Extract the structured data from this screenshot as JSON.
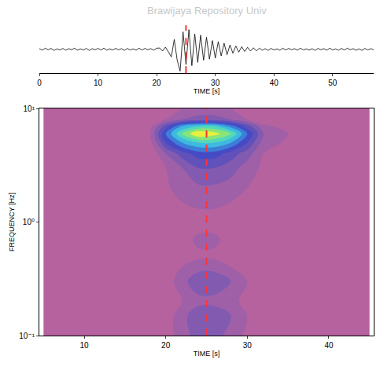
{
  "watermark": "Brawijaya Repository Univ",
  "chart_data": [
    {
      "type": "line",
      "x_label": "TIME [s]",
      "xlim": [
        0,
        57
      ],
      "xticks": [
        0,
        10,
        20,
        30,
        40,
        50
      ],
      "ylim": [
        -1.1,
        1.1
      ],
      "tick_labels": "x",
      "color": "#000000",
      "vline": {
        "x": 25,
        "color": "#ff3333",
        "line_style": "dashed"
      },
      "x": [
        0,
        0.5,
        1,
        1.5,
        2,
        2.5,
        3,
        3.5,
        4,
        4.5,
        5,
        5.5,
        6,
        6.5,
        7,
        7.5,
        8,
        8.5,
        9,
        9.5,
        10,
        10.5,
        11,
        11.5,
        12,
        12.5,
        13,
        13.5,
        14,
        14.5,
        15,
        15.5,
        16,
        16.5,
        17,
        17.5,
        18,
        18.5,
        19,
        19.5,
        20,
        20.5,
        21,
        21.5,
        22,
        22.5,
        23,
        23.5,
        24,
        24.5,
        25,
        25.5,
        26,
        26.5,
        27,
        27.5,
        28,
        28.5,
        29,
        29.5,
        30,
        30.5,
        31,
        31.5,
        32,
        32.5,
        33,
        33.5,
        34,
        34.5,
        35,
        35.5,
        36,
        36.5,
        37,
        37.5,
        38,
        38.5,
        39,
        39.5,
        40,
        40.5,
        41,
        41.5,
        42,
        42.5,
        43,
        43.5,
        44,
        44.5,
        45,
        45.5,
        46,
        46.5,
        47,
        47.5,
        48,
        48.5,
        49,
        49.5,
        50,
        50.5,
        51,
        51.5,
        52,
        52.5,
        53,
        53.5,
        54,
        54.5,
        55,
        55.5,
        56,
        56.5,
        57
      ],
      "values": [
        0.03,
        -0.04,
        0.05,
        -0.02,
        0.04,
        -0.05,
        0.02,
        -0.03,
        0.04,
        -0.04,
        0.03,
        -0.02,
        0.05,
        -0.04,
        0.02,
        -0.03,
        0.04,
        -0.05,
        0.03,
        -0.02,
        0.04,
        -0.03,
        0.05,
        -0.04,
        0.02,
        -0.03,
        0.04,
        -0.02,
        0.03,
        -0.05,
        0.04,
        -0.03,
        0.02,
        -0.04,
        0.05,
        -0.03,
        0.04,
        -0.02,
        0.03,
        -0.04,
        0.05,
        0.06,
        -0.08,
        0.1,
        -0.12,
        -0.35,
        0.45,
        -0.5,
        -1.0,
        0.8,
        -0.7,
        0.9,
        -0.75,
        0.7,
        -0.6,
        0.65,
        -0.5,
        0.55,
        -0.45,
        0.4,
        -0.4,
        0.35,
        -0.3,
        0.28,
        -0.25,
        0.2,
        -0.18,
        0.15,
        -0.13,
        0.12,
        -0.1,
        0.09,
        -0.08,
        0.07,
        -0.07,
        0.05,
        -0.04,
        0.03,
        -0.05,
        0.04,
        -0.03,
        0.02,
        -0.04,
        0.05,
        -0.03,
        0.04,
        -0.02,
        0.03,
        -0.04,
        0.05,
        -0.03,
        0.02,
        -0.04,
        0.03,
        -0.05,
        0.04,
        -0.02,
        0.03,
        -0.04,
        0.05,
        -0.03,
        0.02,
        -0.04,
        0.04,
        -0.03,
        0.05,
        -0.02,
        0.03,
        -0.04,
        0.02,
        -0.05,
        0.04,
        -0.03,
        0.03,
        -0.02
      ]
    },
    {
      "type": "contour",
      "x_label": "TIME [s]",
      "y_label": "FREQUENCY [Hz]",
      "log": "y",
      "xlim": [
        4.5,
        45.5
      ],
      "xticks": [
        10,
        20,
        30,
        40
      ],
      "ylim": [
        0.1,
        10
      ],
      "yticks": [
        {
          "value": 0.1,
          "label": "10⁻¹"
        },
        {
          "value": 1,
          "label": "10⁰"
        },
        {
          "value": 10,
          "label": "10¹"
        }
      ],
      "zlim": [
        0,
        10
      ],
      "colors": [
        "#b5629f",
        "#9a5fab",
        "#6e58b6",
        "#4644c2",
        "#3a86dc",
        "#40d2e0",
        "#6ee08a",
        "#e6f03e"
      ],
      "vline": {
        "x": 25,
        "color": "#ff3333",
        "line_style": "dashed"
      },
      "x": [
        5,
        10,
        15,
        18,
        20,
        22,
        24,
        26,
        28,
        30,
        32,
        35,
        40,
        45
      ],
      "y": [
        0.1,
        0.15,
        0.2,
        0.3,
        0.4,
        0.5,
        0.7,
        1,
        1.5,
        2,
        3,
        4,
        5,
        6,
        7,
        8,
        10
      ],
      "cells": [
        [
          0,
          0,
          0,
          0,
          0.5,
          1.5,
          2.5,
          2.5,
          1.5,
          0.8,
          0.3,
          0,
          0,
          0
        ],
        [
          0,
          0,
          0,
          0,
          0.5,
          1.5,
          3,
          3,
          2,
          1,
          0.3,
          0,
          0,
          0
        ],
        [
          0,
          0,
          0,
          0,
          0.3,
          1,
          1.5,
          1.5,
          1.2,
          0.8,
          0.2,
          0,
          0,
          0
        ],
        [
          0,
          0,
          0,
          0,
          0.5,
          1.5,
          3,
          3,
          2,
          1,
          0.3,
          0,
          0,
          0
        ],
        [
          0,
          0,
          0,
          0,
          0.3,
          1,
          1.5,
          1.5,
          1,
          0.5,
          0,
          0,
          0,
          0
        ],
        [
          0,
          0,
          0,
          0,
          0,
          0.5,
          0.8,
          0.8,
          0.5,
          0.3,
          0,
          0,
          0,
          0
        ],
        [
          0,
          0,
          0,
          0,
          0,
          0.6,
          1.2,
          1.2,
          0.6,
          0,
          0,
          0,
          0,
          0
        ],
        [
          0,
          0,
          0,
          0,
          0,
          0.3,
          0.6,
          0.6,
          0.3,
          0,
          0,
          0,
          0,
          0
        ],
        [
          0,
          0,
          0,
          0,
          0.5,
          1,
          1.2,
          1.2,
          1,
          0.8,
          0.6,
          0.6,
          0.3,
          0
        ],
        [
          0,
          0,
          0,
          0,
          0.8,
          1.5,
          1.8,
          1.8,
          1.5,
          1,
          0.5,
          0.3,
          0,
          0
        ],
        [
          0,
          0,
          0,
          0,
          1,
          2,
          3,
          3,
          2.5,
          1.5,
          0.8,
          0.3,
          0,
          0
        ],
        [
          0,
          0,
          0,
          0,
          2,
          3.5,
          4.5,
          4.5,
          3.5,
          2.5,
          1,
          0.3,
          0,
          0
        ],
        [
          0.5,
          0.8,
          0.5,
          0.5,
          4,
          6,
          7,
          7,
          6,
          4,
          1.5,
          0.8,
          0.6,
          0.5
        ],
        [
          0.8,
          1,
          0.8,
          0.8,
          5,
          8,
          10,
          9.5,
          8,
          5,
          2,
          1,
          0.8,
          0.8
        ],
        [
          0.5,
          0.6,
          0.5,
          0.5,
          3.5,
          6,
          7,
          7,
          5.5,
          3.5,
          1.2,
          0.6,
          0.5,
          0.5
        ],
        [
          0,
          0,
          0,
          0,
          1,
          2,
          2.5,
          2.5,
          2,
          1,
          0.3,
          0,
          0,
          0
        ],
        [
          0,
          0,
          0,
          0,
          0.5,
          1,
          1.2,
          1.2,
          1,
          0.5,
          0,
          0,
          0,
          0
        ]
      ]
    }
  ]
}
